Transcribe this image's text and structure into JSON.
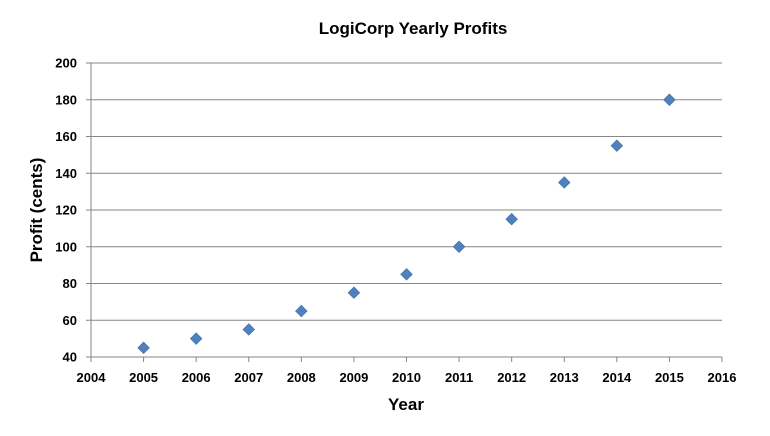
{
  "chart_data": {
    "type": "scatter",
    "title": "LogiCorp Yearly Profits",
    "xlabel": "Year",
    "ylabel": "Profit (cents)",
    "xlim": [
      2004,
      2016
    ],
    "ylim": [
      40,
      200
    ],
    "xticks": [
      2004,
      2005,
      2006,
      2007,
      2008,
      2009,
      2010,
      2011,
      2012,
      2013,
      2014,
      2015,
      2016
    ],
    "yticks": [
      40,
      60,
      80,
      100,
      120,
      140,
      160,
      180,
      200
    ],
    "grid": "horizontal",
    "legend": "none",
    "marker": "diamond",
    "marker_color": "#4f81bd",
    "series": [
      {
        "x": [
          2005,
          2006,
          2007,
          2008,
          2009,
          2010,
          2011,
          2012,
          2013,
          2014,
          2015
        ],
        "values": [
          45,
          50,
          55,
          65,
          75,
          85,
          100,
          115,
          135,
          155,
          180
        ]
      }
    ]
  }
}
